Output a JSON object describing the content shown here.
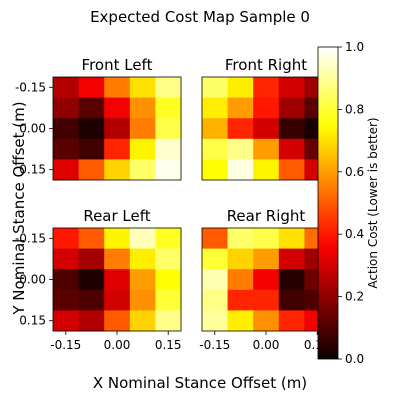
{
  "chart_data": {
    "type": "heatmap",
    "title": "Expected Cost Map Sample 0",
    "xlabel": "X Nominal Stance Offset (m)",
    "ylabel": "Y Nominal Stance Offset (m)",
    "x_tick_labels": [
      "-0.15",
      "0.00",
      "0.15"
    ],
    "y_tick_labels": [
      "-0.15",
      "0.00",
      "0.15"
    ],
    "colormap": "hot",
    "colorbar": {
      "label": "Action Cost (Lower is better)",
      "vmin": 0.0,
      "vmax": 1.0,
      "tick_labels": [
        "0.0",
        "0.2",
        "0.4",
        "0.6",
        "0.8",
        "1.0"
      ]
    },
    "panels": [
      {
        "title": "Front Left",
        "values": [
          [
            0.25,
            0.35,
            0.55,
            0.7,
            0.88
          ],
          [
            0.2,
            0.12,
            0.35,
            0.58,
            0.78
          ],
          [
            0.08,
            0.03,
            0.25,
            0.55,
            0.82
          ],
          [
            0.12,
            0.08,
            0.42,
            0.73,
            0.95
          ],
          [
            0.32,
            0.5,
            0.68,
            0.85,
            0.98
          ]
        ]
      },
      {
        "title": "Front Right",
        "values": [
          [
            0.85,
            0.72,
            0.42,
            0.3,
            0.22
          ],
          [
            0.72,
            0.6,
            0.4,
            0.22,
            0.12
          ],
          [
            0.63,
            0.42,
            0.3,
            0.07,
            0.02
          ],
          [
            0.82,
            0.88,
            0.6,
            0.3,
            0.14
          ],
          [
            0.75,
            0.97,
            0.73,
            0.5,
            0.3
          ]
        ]
      },
      {
        "title": "Rear Left",
        "values": [
          [
            0.4,
            0.5,
            0.73,
            0.93,
            0.78
          ],
          [
            0.3,
            0.23,
            0.55,
            0.72,
            0.85
          ],
          [
            0.1,
            0.03,
            0.32,
            0.6,
            0.75
          ],
          [
            0.12,
            0.1,
            0.3,
            0.58,
            0.8
          ],
          [
            0.3,
            0.25,
            0.5,
            0.68,
            0.88
          ]
        ]
      },
      {
        "title": "Rear Right",
        "values": [
          [
            0.5,
            0.85,
            0.82,
            0.7,
            0.53
          ],
          [
            0.8,
            0.68,
            0.6,
            0.3,
            0.22
          ],
          [
            0.92,
            0.55,
            0.35,
            0.04,
            0.15
          ],
          [
            0.88,
            0.42,
            0.42,
            0.08,
            0.1
          ],
          [
            0.9,
            0.72,
            0.58,
            0.42,
            0.35
          ]
        ]
      }
    ]
  }
}
